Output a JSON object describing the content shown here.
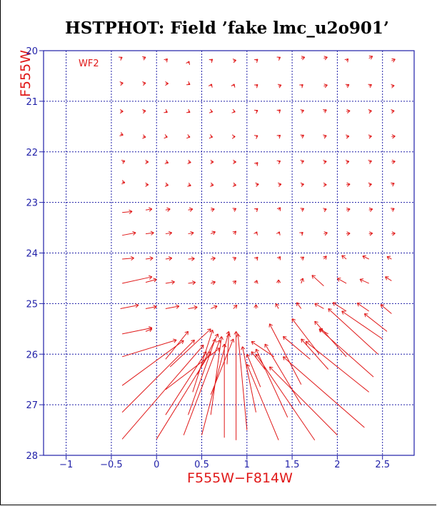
{
  "chart_data": {
    "type": "vector",
    "title": "HSTPHOT: Field ’fake lmc_u2o901’",
    "xlabel": "F555W−F814W",
    "ylabel": "F555W",
    "panel_label": "WF2",
    "xlim": [
      -1.25,
      2.85
    ],
    "ylim": [
      28,
      20
    ],
    "grid": true,
    "x_ticks": [
      -1,
      -0.5,
      0,
      0.5,
      1,
      1.5,
      2,
      2.5
    ],
    "x_tick_labels": [
      "−1",
      "−0.5",
      "0",
      "0.5",
      "1",
      "1.5",
      "2",
      "2.5"
    ],
    "y_ticks": [
      20,
      21,
      22,
      23,
      24,
      25,
      26,
      27,
      28
    ],
    "y_tick_labels": [
      "20",
      "21",
      "22",
      "23",
      "24",
      "25",
      "26",
      "27",
      "28"
    ],
    "vectors": [
      {
        "x": -0.4,
        "y": 20.15,
        "x2": -0.38,
        "y2": 20.13
      },
      {
        "x": -0.15,
        "y": 20.15,
        "x2": -0.12,
        "y2": 20.13
      },
      {
        "x": 0.1,
        "y": 20.2,
        "x2": 0.12,
        "y2": 20.16
      },
      {
        "x": 0.35,
        "y": 20.25,
        "x2": 0.36,
        "y2": 20.21
      },
      {
        "x": 0.6,
        "y": 20.2,
        "x2": 0.62,
        "y2": 20.17
      },
      {
        "x": 0.85,
        "y": 20.2,
        "x2": 0.88,
        "y2": 20.19
      },
      {
        "x": 1.1,
        "y": 20.2,
        "x2": 1.12,
        "y2": 20.17
      },
      {
        "x": 1.35,
        "y": 20.15,
        "x2": 1.37,
        "y2": 20.13
      },
      {
        "x": 1.6,
        "y": 20.15,
        "x2": 1.64,
        "y2": 20.13
      },
      {
        "x": 1.85,
        "y": 20.15,
        "x2": 1.89,
        "y2": 20.13
      },
      {
        "x": 2.1,
        "y": 20.2,
        "x2": 2.12,
        "y2": 20.16
      },
      {
        "x": 2.35,
        "y": 20.15,
        "x2": 2.39,
        "y2": 20.11
      },
      {
        "x": 2.6,
        "y": 20.2,
        "x2": 2.64,
        "y2": 20.17
      },
      {
        "x": -0.4,
        "y": 20.65,
        "x2": -0.37,
        "y2": 20.64
      },
      {
        "x": -0.15,
        "y": 20.65,
        "x2": -0.12,
        "y2": 20.64
      },
      {
        "x": 0.1,
        "y": 20.65,
        "x2": 0.13,
        "y2": 20.65
      },
      {
        "x": 0.35,
        "y": 20.65,
        "x2": 0.37,
        "y2": 20.67
      },
      {
        "x": 0.6,
        "y": 20.7,
        "x2": 0.61,
        "y2": 20.66
      },
      {
        "x": 0.85,
        "y": 20.7,
        "x2": 0.86,
        "y2": 20.66
      },
      {
        "x": 1.1,
        "y": 20.7,
        "x2": 1.12,
        "y2": 20.67
      },
      {
        "x": 1.35,
        "y": 20.7,
        "x2": 1.38,
        "y2": 20.68
      },
      {
        "x": 1.6,
        "y": 20.7,
        "x2": 1.62,
        "y2": 20.67
      },
      {
        "x": 1.85,
        "y": 20.7,
        "x2": 1.89,
        "y2": 20.68
      },
      {
        "x": 2.1,
        "y": 20.7,
        "x2": 2.13,
        "y2": 20.67
      },
      {
        "x": 2.35,
        "y": 20.7,
        "x2": 2.38,
        "y2": 20.67
      },
      {
        "x": 2.6,
        "y": 20.7,
        "x2": 2.63,
        "y2": 20.69
      },
      {
        "x": -0.4,
        "y": 21.2,
        "x2": -0.37,
        "y2": 21.2
      },
      {
        "x": -0.15,
        "y": 21.2,
        "x2": -0.12,
        "y2": 21.19
      },
      {
        "x": 0.1,
        "y": 21.2,
        "x2": 0.12,
        "y2": 21.22
      },
      {
        "x": 0.35,
        "y": 21.2,
        "x2": 0.37,
        "y2": 21.22
      },
      {
        "x": 0.6,
        "y": 21.2,
        "x2": 0.62,
        "y2": 21.21
      },
      {
        "x": 0.85,
        "y": 21.2,
        "x2": 0.87,
        "y2": 21.21
      },
      {
        "x": 1.1,
        "y": 21.2,
        "x2": 1.12,
        "y2": 21.18
      },
      {
        "x": 1.35,
        "y": 21.2,
        "x2": 1.37,
        "y2": 21.17
      },
      {
        "x": 1.6,
        "y": 21.2,
        "x2": 1.63,
        "y2": 21.18
      },
      {
        "x": 1.85,
        "y": 21.2,
        "x2": 1.88,
        "y2": 21.17
      },
      {
        "x": 2.1,
        "y": 21.2,
        "x2": 2.14,
        "y2": 21.19
      },
      {
        "x": 2.35,
        "y": 21.2,
        "x2": 2.38,
        "y2": 21.19
      },
      {
        "x": 2.6,
        "y": 21.2,
        "x2": 2.63,
        "y2": 21.19
      },
      {
        "x": -0.4,
        "y": 21.65,
        "x2": -0.37,
        "y2": 21.67
      },
      {
        "x": -0.15,
        "y": 21.7,
        "x2": -0.12,
        "y2": 21.71
      },
      {
        "x": 0.1,
        "y": 21.7,
        "x2": 0.12,
        "y2": 21.71
      },
      {
        "x": 0.35,
        "y": 21.7,
        "x2": 0.37,
        "y2": 21.71
      },
      {
        "x": 0.6,
        "y": 21.7,
        "x2": 0.62,
        "y2": 21.71
      },
      {
        "x": 0.85,
        "y": 21.7,
        "x2": 0.87,
        "y2": 21.7
      },
      {
        "x": 1.1,
        "y": 21.7,
        "x2": 1.12,
        "y2": 21.68
      },
      {
        "x": 1.35,
        "y": 21.7,
        "x2": 1.37,
        "y2": 21.67
      },
      {
        "x": 1.6,
        "y": 21.7,
        "x2": 1.63,
        "y2": 21.67
      },
      {
        "x": 1.85,
        "y": 21.7,
        "x2": 1.88,
        "y2": 21.68
      },
      {
        "x": 2.1,
        "y": 21.7,
        "x2": 2.13,
        "y2": 21.69
      },
      {
        "x": 2.35,
        "y": 21.7,
        "x2": 2.38,
        "y2": 21.69
      },
      {
        "x": 2.6,
        "y": 21.7,
        "x2": 2.64,
        "y2": 21.69
      },
      {
        "x": -0.38,
        "y": 22.2,
        "x2": -0.35,
        "y2": 22.18
      },
      {
        "x": -0.12,
        "y": 22.2,
        "x2": -0.09,
        "y2": 22.2
      },
      {
        "x": 0.1,
        "y": 22.2,
        "x2": 0.13,
        "y2": 22.22
      },
      {
        "x": 0.35,
        "y": 22.2,
        "x2": 0.38,
        "y2": 22.21
      },
      {
        "x": 0.6,
        "y": 22.2,
        "x2": 0.63,
        "y2": 22.2
      },
      {
        "x": 0.85,
        "y": 22.2,
        "x2": 0.88,
        "y2": 22.2
      },
      {
        "x": 1.1,
        "y": 22.25,
        "x2": 1.12,
        "y2": 22.21
      },
      {
        "x": 1.35,
        "y": 22.2,
        "x2": 1.37,
        "y2": 22.18
      },
      {
        "x": 1.6,
        "y": 22.2,
        "x2": 1.63,
        "y2": 22.18
      },
      {
        "x": 1.85,
        "y": 22.2,
        "x2": 1.88,
        "y2": 22.19
      },
      {
        "x": 2.1,
        "y": 22.2,
        "x2": 2.13,
        "y2": 22.19
      },
      {
        "x": 2.35,
        "y": 22.2,
        "x2": 2.38,
        "y2": 22.18
      },
      {
        "x": 2.6,
        "y": 22.2,
        "x2": 2.64,
        "y2": 22.19
      },
      {
        "x": -0.38,
        "y": 22.6,
        "x2": -0.35,
        "y2": 22.61
      },
      {
        "x": -0.12,
        "y": 22.65,
        "x2": -0.09,
        "y2": 22.65
      },
      {
        "x": 0.1,
        "y": 22.65,
        "x2": 0.13,
        "y2": 22.66
      },
      {
        "x": 0.35,
        "y": 22.65,
        "x2": 0.38,
        "y2": 22.67
      },
      {
        "x": 0.6,
        "y": 22.65,
        "x2": 0.63,
        "y2": 22.66
      },
      {
        "x": 0.85,
        "y": 22.65,
        "x2": 0.88,
        "y2": 22.66
      },
      {
        "x": 1.1,
        "y": 22.65,
        "x2": 1.13,
        "y2": 22.64
      },
      {
        "x": 1.35,
        "y": 22.65,
        "x2": 1.38,
        "y2": 22.64
      },
      {
        "x": 1.6,
        "y": 22.65,
        "x2": 1.63,
        "y2": 22.64
      },
      {
        "x": 1.85,
        "y": 22.65,
        "x2": 1.88,
        "y2": 22.65
      },
      {
        "x": 2.1,
        "y": 22.65,
        "x2": 2.14,
        "y2": 22.64
      },
      {
        "x": 2.35,
        "y": 22.65,
        "x2": 2.38,
        "y2": 22.64
      },
      {
        "x": 2.6,
        "y": 22.65,
        "x2": 2.63,
        "y2": 22.62
      },
      {
        "x": -0.38,
        "y": 23.2,
        "x2": -0.27,
        "y2": 23.18
      },
      {
        "x": -0.12,
        "y": 23.15,
        "x2": -0.05,
        "y2": 23.13
      },
      {
        "x": 0.1,
        "y": 23.15,
        "x2": 0.15,
        "y2": 23.13
      },
      {
        "x": 0.35,
        "y": 23.15,
        "x2": 0.4,
        "y2": 23.13
      },
      {
        "x": 0.6,
        "y": 23.15,
        "x2": 0.64,
        "y2": 23.13
      },
      {
        "x": 0.85,
        "y": 23.15,
        "x2": 0.88,
        "y2": 23.12
      },
      {
        "x": 1.1,
        "y": 23.15,
        "x2": 1.12,
        "y2": 23.12
      },
      {
        "x": 1.35,
        "y": 23.15,
        "x2": 1.37,
        "y2": 23.1
      },
      {
        "x": 1.6,
        "y": 23.15,
        "x2": 1.63,
        "y2": 23.12
      },
      {
        "x": 1.85,
        "y": 23.15,
        "x2": 1.88,
        "y2": 23.13
      },
      {
        "x": 2.1,
        "y": 23.15,
        "x2": 2.14,
        "y2": 23.13
      },
      {
        "x": 2.35,
        "y": 23.15,
        "x2": 2.39,
        "y2": 23.13
      },
      {
        "x": 2.6,
        "y": 23.15,
        "x2": 2.63,
        "y2": 23.12
      },
      {
        "x": -0.38,
        "y": 23.65,
        "x2": -0.23,
        "y2": 23.6
      },
      {
        "x": -0.12,
        "y": 23.62,
        "x2": -0.03,
        "y2": 23.6
      },
      {
        "x": 0.1,
        "y": 23.62,
        "x2": 0.17,
        "y2": 23.6
      },
      {
        "x": 0.35,
        "y": 23.62,
        "x2": 0.41,
        "y2": 23.6
      },
      {
        "x": 0.6,
        "y": 23.62,
        "x2": 0.65,
        "y2": 23.58
      },
      {
        "x": 0.85,
        "y": 23.62,
        "x2": 0.88,
        "y2": 23.57
      },
      {
        "x": 1.1,
        "y": 23.62,
        "x2": 1.11,
        "y2": 23.58
      },
      {
        "x": 1.35,
        "y": 23.62,
        "x2": 1.36,
        "y2": 23.58
      },
      {
        "x": 1.6,
        "y": 23.62,
        "x2": 1.62,
        "y2": 23.59
      },
      {
        "x": 1.85,
        "y": 23.62,
        "x2": 1.89,
        "y2": 23.6
      },
      {
        "x": 2.1,
        "y": 23.62,
        "x2": 2.14,
        "y2": 23.61
      },
      {
        "x": 2.35,
        "y": 23.62,
        "x2": 2.39,
        "y2": 23.61
      },
      {
        "x": 2.6,
        "y": 23.62,
        "x2": 2.64,
        "y2": 23.61
      },
      {
        "x": -0.38,
        "y": 24.12,
        "x2": -0.25,
        "y2": 24.1
      },
      {
        "x": -0.12,
        "y": 24.12,
        "x2": -0.04,
        "y2": 24.1
      },
      {
        "x": 0.1,
        "y": 24.12,
        "x2": 0.17,
        "y2": 24.1
      },
      {
        "x": 0.35,
        "y": 24.12,
        "x2": 0.42,
        "y2": 24.11
      },
      {
        "x": 0.6,
        "y": 24.12,
        "x2": 0.65,
        "y2": 24.1
      },
      {
        "x": 0.85,
        "y": 24.12,
        "x2": 0.88,
        "y2": 24.09
      },
      {
        "x": 1.1,
        "y": 24.12,
        "x2": 1.12,
        "y2": 24.08
      },
      {
        "x": 1.35,
        "y": 24.12,
        "x2": 1.37,
        "y2": 24.07
      },
      {
        "x": 1.6,
        "y": 24.12,
        "x2": 1.63,
        "y2": 24.08
      },
      {
        "x": 1.85,
        "y": 24.12,
        "x2": 1.88,
        "y2": 24.06
      },
      {
        "x": 2.1,
        "y": 24.12,
        "x2": 2.05,
        "y2": 24.05
      },
      {
        "x": 2.35,
        "y": 24.12,
        "x2": 2.28,
        "y2": 24.06
      },
      {
        "x": 2.6,
        "y": 24.12,
        "x2": 2.55,
        "y2": 24.07
      },
      {
        "x": -0.38,
        "y": 24.6,
        "x2": -0.05,
        "y2": 24.47
      },
      {
        "x": -0.12,
        "y": 24.58,
        "x2": 0.0,
        "y2": 24.52
      },
      {
        "x": 0.1,
        "y": 24.6,
        "x2": 0.2,
        "y2": 24.57
      },
      {
        "x": 0.35,
        "y": 24.6,
        "x2": 0.43,
        "y2": 24.58
      },
      {
        "x": 0.6,
        "y": 24.6,
        "x2": 0.65,
        "y2": 24.57
      },
      {
        "x": 0.85,
        "y": 24.6,
        "x2": 0.88,
        "y2": 24.55
      },
      {
        "x": 1.1,
        "y": 24.6,
        "x2": 1.11,
        "y2": 24.54
      },
      {
        "x": 1.35,
        "y": 24.6,
        "x2": 1.35,
        "y2": 24.53
      },
      {
        "x": 1.6,
        "y": 24.6,
        "x2": 1.62,
        "y2": 24.5
      },
      {
        "x": 1.85,
        "y": 24.65,
        "x2": 1.72,
        "y2": 24.44
      },
      {
        "x": 2.1,
        "y": 24.6,
        "x2": 2.0,
        "y2": 24.5
      },
      {
        "x": 2.35,
        "y": 24.6,
        "x2": 2.25,
        "y2": 24.52
      },
      {
        "x": 2.6,
        "y": 24.55,
        "x2": 2.53,
        "y2": 24.47
      },
      {
        "x": -0.4,
        "y": 25.1,
        "x2": -0.2,
        "y2": 25.03
      },
      {
        "x": -0.12,
        "y": 25.1,
        "x2": 0.0,
        "y2": 25.06
      },
      {
        "x": 0.1,
        "y": 25.1,
        "x2": 0.25,
        "y2": 25.05
      },
      {
        "x": 0.35,
        "y": 25.1,
        "x2": 0.45,
        "y2": 25.07
      },
      {
        "x": 0.6,
        "y": 25.1,
        "x2": 0.67,
        "y2": 25.05
      },
      {
        "x": 0.85,
        "y": 25.1,
        "x2": 0.89,
        "y2": 25.03
      },
      {
        "x": 1.1,
        "y": 25.1,
        "x2": 1.1,
        "y2": 25.02
      },
      {
        "x": 1.35,
        "y": 25.1,
        "x2": 1.32,
        "y2": 25.0
      },
      {
        "x": 1.6,
        "y": 25.1,
        "x2": 1.55,
        "y2": 24.98
      },
      {
        "x": 1.85,
        "y": 25.1,
        "x2": 1.75,
        "y2": 25.0
      },
      {
        "x": 2.1,
        "y": 25.15,
        "x2": 1.95,
        "y2": 24.98
      },
      {
        "x": 2.35,
        "y": 25.15,
        "x2": 2.22,
        "y2": 24.99
      },
      {
        "x": 2.6,
        "y": 25.2,
        "x2": 2.48,
        "y2": 25.02
      },
      {
        "x": -0.38,
        "y": 25.6,
        "x2": -0.05,
        "y2": 25.48
      },
      {
        "x": -0.38,
        "y": 26.05,
        "x2": 0.22,
        "y2": 25.72
      },
      {
        "x": -0.38,
        "y": 26.62,
        "x2": 0.3,
        "y2": 25.73
      },
      {
        "x": -0.38,
        "y": 27.15,
        "x2": 0.42,
        "y2": 25.72
      },
      {
        "x": -0.38,
        "y": 27.68,
        "x2": 0.52,
        "y2": 25.82
      },
      {
        "x": -0.12,
        "y": 25.55,
        "x2": -0.05,
        "y2": 25.5
      },
      {
        "x": 0.0,
        "y": 27.68,
        "x2": 0.6,
        "y2": 25.95
      },
      {
        "x": 0.1,
        "y": 27.2,
        "x2": 0.55,
        "y2": 25.95
      },
      {
        "x": 0.1,
        "y": 26.7,
        "x2": 0.7,
        "y2": 25.88
      },
      {
        "x": 0.1,
        "y": 26.1,
        "x2": 0.35,
        "y2": 25.55
      },
      {
        "x": 0.15,
        "y": 26.25,
        "x2": 0.6,
        "y2": 25.5
      },
      {
        "x": 0.3,
        "y": 27.6,
        "x2": 0.7,
        "y2": 25.72
      },
      {
        "x": 0.35,
        "y": 27.2,
        "x2": 0.65,
        "y2": 25.7
      },
      {
        "x": 0.4,
        "y": 26.75,
        "x2": 0.62,
        "y2": 25.52
      },
      {
        "x": 0.45,
        "y": 26.4,
        "x2": 0.68,
        "y2": 25.6
      },
      {
        "x": 0.5,
        "y": 27.6,
        "x2": 0.8,
        "y2": 25.55
      },
      {
        "x": 0.6,
        "y": 27.2,
        "x2": 0.72,
        "y2": 25.65
      },
      {
        "x": 0.6,
        "y": 26.8,
        "x2": 0.85,
        "y2": 25.7
      },
      {
        "x": 0.75,
        "y": 27.65,
        "x2": 0.75,
        "y2": 25.8
      },
      {
        "x": 0.78,
        "y": 26.2,
        "x2": 0.8,
        "y2": 25.6
      },
      {
        "x": 0.88,
        "y": 27.7,
        "x2": 0.88,
        "y2": 25.55
      },
      {
        "x": 1.0,
        "y": 27.5,
        "x2": 0.9,
        "y2": 25.6
      },
      {
        "x": 1.1,
        "y": 27.15,
        "x2": 0.95,
        "y2": 25.85
      },
      {
        "x": 1.15,
        "y": 26.65,
        "x2": 1.0,
        "y2": 26.0
      },
      {
        "x": 1.2,
        "y": 26.3,
        "x2": 1.05,
        "y2": 25.95
      },
      {
        "x": 1.3,
        "y": 26.05,
        "x2": 1.05,
        "y2": 25.75
      },
      {
        "x": 1.35,
        "y": 27.7,
        "x2": 1.0,
        "y2": 26.2
      },
      {
        "x": 1.45,
        "y": 27.25,
        "x2": 1.1,
        "y2": 25.9
      },
      {
        "x": 1.6,
        "y": 27.0,
        "x2": 1.2,
        "y2": 25.8
      },
      {
        "x": 1.6,
        "y": 26.6,
        "x2": 1.25,
        "y2": 25.4
      },
      {
        "x": 1.7,
        "y": 26.1,
        "x2": 1.4,
        "y2": 25.65
      },
      {
        "x": 1.75,
        "y": 27.7,
        "x2": 1.1,
        "y2": 26.0
      },
      {
        "x": 1.8,
        "y": 26.0,
        "x2": 1.5,
        "y2": 25.3
      },
      {
        "x": 1.9,
        "y": 26.3,
        "x2": 1.6,
        "y2": 25.7
      },
      {
        "x": 2.0,
        "y": 27.6,
        "x2": 1.25,
        "y2": 26.25
      },
      {
        "x": 2.1,
        "y": 26.05,
        "x2": 1.75,
        "y2": 25.35
      },
      {
        "x": 2.3,
        "y": 27.45,
        "x2": 1.4,
        "y2": 26.05
      },
      {
        "x": 2.35,
        "y": 26.75,
        "x2": 1.65,
        "y2": 25.75
      },
      {
        "x": 2.4,
        "y": 26.45,
        "x2": 1.8,
        "y2": 25.5
      },
      {
        "x": 2.45,
        "y": 26.0,
        "x2": 1.9,
        "y2": 25.1
      },
      {
        "x": 2.5,
        "y": 25.7,
        "x2": 2.05,
        "y2": 25.15
      },
      {
        "x": 2.55,
        "y": 25.55,
        "x2": 2.3,
        "y2": 25.2
      },
      {
        "x": 1.9,
        "y": 25.6,
        "x2": 1.8,
        "y2": 25.5
      }
    ]
  }
}
